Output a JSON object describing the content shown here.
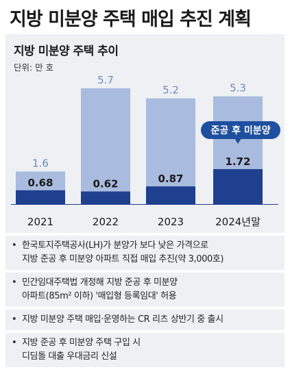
{
  "header": {
    "title": "지방 미분양 주택 매입 추진 계획"
  },
  "chart_data": {
    "type": "bar",
    "title": "지방 미분양 주택 추이",
    "unit_label": "단위: 만 호",
    "categories": [
      "2021",
      "2022",
      "2023",
      "2024년말"
    ],
    "series": [
      {
        "name": "",
        "values": [
          1.6,
          5.7,
          5.2,
          5.3
        ],
        "labels": [
          "1.6",
          "5.7",
          "5.2",
          "5.3"
        ],
        "color": "#a9bbde",
        "label_color": "#6f88bf"
      },
      {
        "name": "준공 후 미분양",
        "values": [
          0.68,
          0.62,
          0.87,
          1.72
        ],
        "labels": [
          "0.68",
          "0.62",
          "0.87",
          "1.72"
        ],
        "color": "#1f3f8f",
        "label_color": "#1a1a1a"
      }
    ],
    "ylim": [
      0,
      6.2
    ],
    "annotation": {
      "text": "준공 후 미분양",
      "target_category": "2024년말",
      "background": "#1f4f9f",
      "color": "#ffffff"
    },
    "grid": false
  },
  "notes": [
    "한국토지주택공사(LH)가 분양가 보다 낮은 가격으로\n지방 준공 후 미분양 아파트 직접 매입 추진(약 3,000호)",
    "민간임대주택법 개정해 지방 준공 후 미분양\n아파트(85m² 이하) '매입형 등록임대' 허용",
    "지방 미분양 주택 매입·운영하는 CR 리츠 상반기 중 출시",
    "지방 준공 후 미분양 주택 구입 시\n디딤돌 대출 우대금리 신설"
  ],
  "bullet_glyph": "•"
}
